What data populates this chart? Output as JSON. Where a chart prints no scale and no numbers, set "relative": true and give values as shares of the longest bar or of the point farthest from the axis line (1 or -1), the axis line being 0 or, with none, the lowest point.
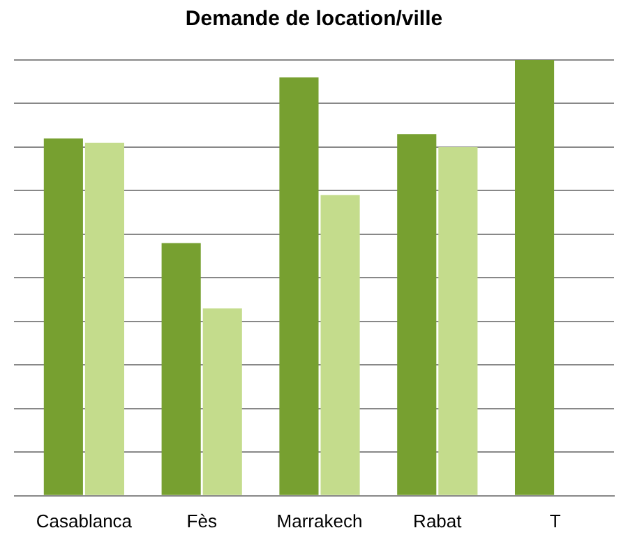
{
  "chart_data": {
    "type": "bar",
    "title": "Demande de location/ville",
    "categories": [
      "Casablanca",
      "Fès",
      "Marrakech",
      "Rabat",
      "T"
    ],
    "series": [
      {
        "color": "#77a030",
        "values": [
          0.82,
          0.58,
          0.96,
          0.83,
          1
        ]
      },
      {
        "color": "#c4dc8c",
        "values": [
          0.81,
          0.43,
          0.69,
          0.8,
          null
        ]
      }
    ],
    "relative": true,
    "grid": "y",
    "legend": false
  }
}
